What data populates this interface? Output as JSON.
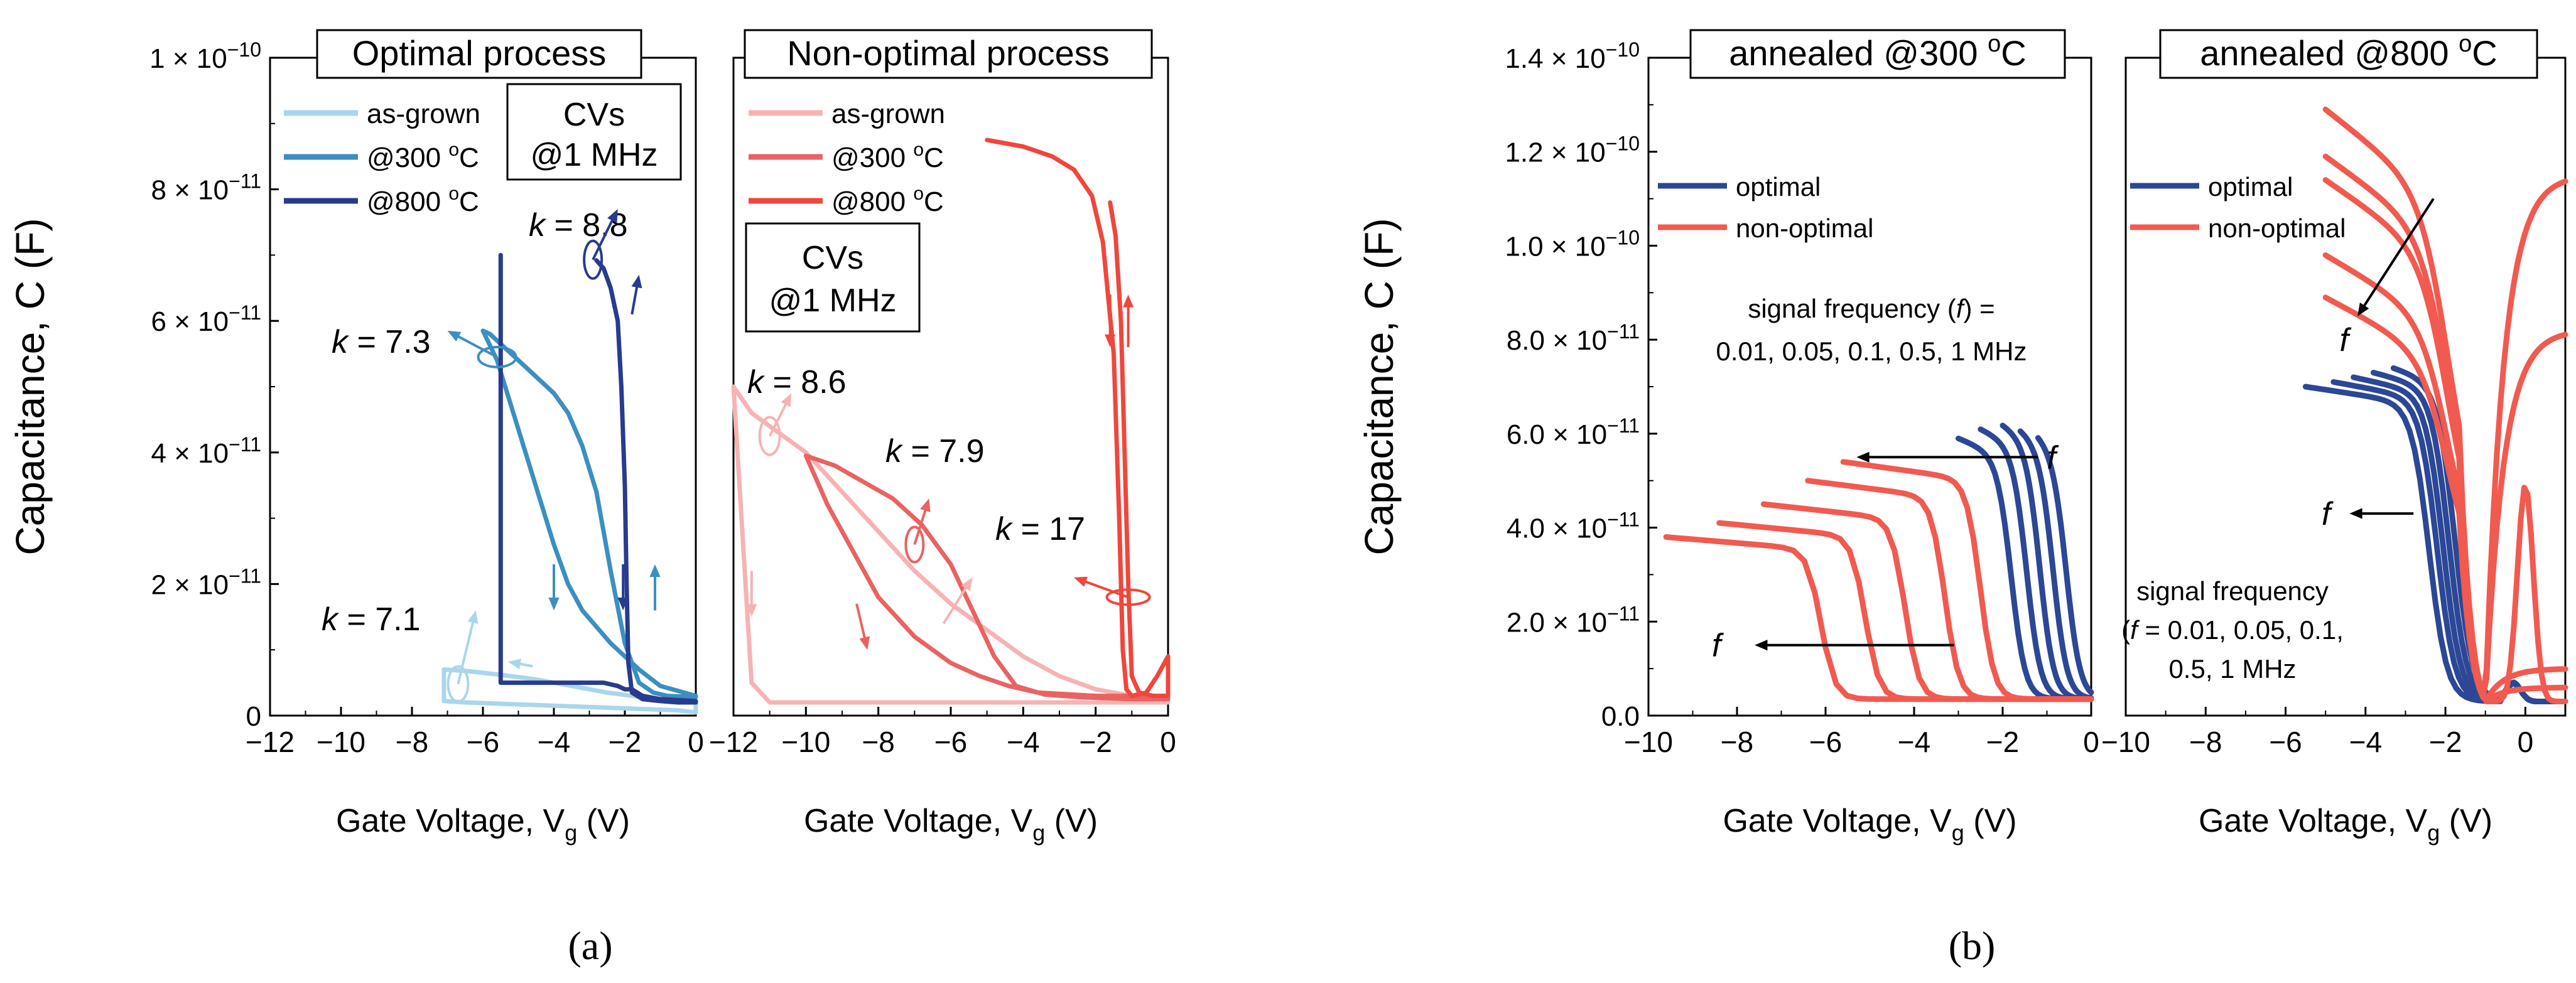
{
  "figure_labels": {
    "a": "(a)",
    "b": "(b)"
  },
  "annotation_texts": {
    "cvs_1": "CVs",
    "cvs_2": "@1 MHz",
    "freq_b1_line1": "signal frequency (f) =",
    "freq_b1_line2": "0.01, 0.05, 0.1, 0.5, 1 MHz",
    "freq_b2_line1": "signal frequency",
    "freq_b2_line2": "(f) = 0.01, 0.05, 0.1,",
    "freq_b2_line3": "0.5, 1 MHz",
    "f_symbol": "f"
  },
  "colors": {
    "as_grown_blue": "#a9d6ea",
    "c300_blue": "#3b8fc1",
    "c800_blue": "#283b8e",
    "as_grown_red": "#f6b3b3",
    "c300_red": "#ea6262",
    "c800_red": "#f0463c",
    "optimal": "#2b4796",
    "non_optimal": "#f15a4f"
  },
  "chart_data": [
    {
      "id": "a1",
      "type": "line",
      "title": "Optimal process",
      "xlabel": "Gate Voltage, Vg (V)",
      "ylabel": "Capacitance, C (F)",
      "xlim": [
        -12,
        0
      ],
      "ylim": [
        0,
        1e-10
      ],
      "xticks": [
        -12,
        -10,
        -8,
        -6,
        -4,
        -2,
        0
      ],
      "yticks": [
        0,
        2e-11,
        4e-11,
        6e-11,
        8e-11,
        1e-10
      ],
      "ytick_labels": [
        "0",
        "2 × 10⁻¹¹",
        "4 × 10⁻¹¹",
        "6 × 10⁻¹¹",
        "8 × 10⁻¹¹",
        "1 × 10⁻¹⁰"
      ],
      "legend": [
        "as-grown",
        "@300 °C",
        "@800 °C"
      ],
      "annotations": [
        "k = 7.1",
        "k = 7.3",
        "k = 8.8"
      ],
      "series": [
        {
          "name": "as-grown",
          "color": "as_grown_blue",
          "width": 7,
          "x": [
            -7.1,
            -6.5,
            -5.5,
            -4.5,
            -3.5,
            -2.5,
            -1.5,
            -0.5,
            0,
            0,
            -0.5,
            -1.5,
            -2.5,
            -3.5,
            -4.5,
            -5.5,
            -6.5,
            -7.1,
            -7.1
          ],
          "y": [
            7e-12,
            6.8e-12,
            6.2e-12,
            5.5e-12,
            4.5e-12,
            3.5e-12,
            2.8e-12,
            2.2e-12,
            2e-12,
            5e-13,
            8e-13,
            1e-12,
            1.2e-12,
            1.4e-12,
            1.6e-12,
            1.8e-12,
            2e-12,
            2.2e-12,
            7e-12
          ]
        },
        {
          "name": "@300 °C",
          "color": "c300_blue",
          "width": 7,
          "x": [
            -6,
            -5.8,
            -5.2,
            -4.6,
            -4.0,
            -3.6,
            -3.2,
            -2.8,
            -2.4,
            -2.0,
            -1.6,
            -1.2,
            -0.8,
            0,
            0,
            -1.0,
            -1.6,
            -2.0,
            -2.4,
            -2.8,
            -3.2,
            -3.6,
            -4.0,
            -4.4,
            -4.8,
            -5.2,
            -5.6,
            -6.0
          ],
          "y": [
            5.85e-11,
            5.8e-11,
            5.5e-11,
            5.2e-11,
            4.9e-11,
            4.6e-11,
            4.1e-11,
            3.4e-11,
            2.2e-11,
            1.1e-11,
            5e-12,
            3.5e-12,
            3e-12,
            2.8e-12,
            3e-12,
            4.5e-12,
            7e-12,
            9e-12,
            1.1e-11,
            1.35e-11,
            1.6e-11,
            2e-11,
            2.6e-11,
            3.3e-11,
            4e-11,
            4.7e-11,
            5.4e-11,
            5.85e-11
          ]
        },
        {
          "name": "@800 °C",
          "color": "c800_blue",
          "width": 7,
          "x": [
            -2.8,
            -2.6,
            -2.4,
            -2.2,
            -2.1,
            -2.0,
            -1.95,
            -1.9,
            -1.8,
            -1.5,
            -1.0,
            -0.5,
            0,
            0,
            -1.0,
            -1.5,
            -1.8,
            -2.0,
            -2.2,
            -2.6,
            -3.2,
            -3.8,
            -4.4,
            -5.0,
            -5.5,
            -5.5
          ],
          "y": [
            6.92e-11,
            6.8e-11,
            6.5e-11,
            6e-11,
            5e-11,
            3.5e-11,
            2e-11,
            8e-12,
            3.5e-12,
            2.5e-12,
            2.2e-12,
            2e-12,
            2e-12,
            2.2e-12,
            2.5e-12,
            3e-12,
            4e-12,
            4e-12,
            4.5e-12,
            5e-12,
            5e-12,
            5e-12,
            5e-12,
            5e-12,
            5e-12,
            7e-11
          ]
        }
      ]
    },
    {
      "id": "a2",
      "type": "line",
      "title": "Non-optimal process",
      "xlabel": "Gate Voltage, Vg (V)",
      "ylabel": "",
      "xlim": [
        -12,
        0
      ],
      "ylim": [
        0,
        1e-10
      ],
      "xticks": [
        -12,
        -10,
        -8,
        -6,
        -4,
        -2,
        0
      ],
      "legend": [
        "as-grown",
        "@300 °C",
        "@800 °C"
      ],
      "annotations": [
        "k = 8.6",
        "k = 7.9",
        "k = 17"
      ],
      "series": [
        {
          "name": "as-grown",
          "color": "as_grown_red",
          "width": 7,
          "x": [
            -12,
            -11.5,
            -11.0,
            -10.5,
            -10.0,
            -9.0,
            -8.0,
            -7.0,
            -6.0,
            -5.0,
            -4.0,
            -3.0,
            -2.0,
            -1.0,
            0,
            0,
            -1.0,
            -3.0,
            -5.0,
            -7.0,
            -9.0,
            -11.0,
            -11.5,
            -12
          ],
          "y": [
            5e-11,
            4.6e-11,
            4.4e-11,
            4.2e-11,
            4e-11,
            3.4e-11,
            2.8e-11,
            2.2e-11,
            1.7e-11,
            1.3e-11,
            9e-12,
            6e-12,
            4e-12,
            3e-12,
            2.5e-12,
            2e-12,
            2e-12,
            2e-12,
            2e-12,
            2e-12,
            2e-12,
            2e-12,
            5e-12,
            5e-11
          ]
        },
        {
          "name": "@300 °C",
          "color": "c300_red",
          "width": 7,
          "x": [
            -10.0,
            -9.2,
            -8.4,
            -7.6,
            -6.8,
            -6.0,
            -5.4,
            -4.8,
            -4.2,
            -3.4,
            -2.4,
            -1.0,
            0,
            0,
            -2.0,
            -3.6,
            -4.4,
            -5.2,
            -6.0,
            -7.0,
            -8.0,
            -8.8,
            -9.4,
            -9.8,
            -10.0
          ],
          "y": [
            3.95e-11,
            3.8e-11,
            3.55e-11,
            3.3e-11,
            2.9e-11,
            2.3e-11,
            1.6e-11,
            9e-12,
            4.5e-12,
            3.2e-12,
            2.8e-12,
            2.5e-12,
            2.5e-12,
            3e-12,
            3e-12,
            3.5e-12,
            4.5e-12,
            6e-12,
            8e-12,
            1.2e-11,
            1.8e-11,
            2.6e-11,
            3.2e-11,
            3.7e-11,
            3.95e-11
          ]
        },
        {
          "name": "@800 °C",
          "color": "c800_red",
          "width": 7,
          "x": [
            -5.0,
            -4.0,
            -3.2,
            -2.6,
            -2.1,
            -1.8,
            -1.5,
            -1.35,
            -1.25,
            -1.15,
            -1.0,
            -0.6,
            -0.3,
            0,
            0,
            -0.4,
            -0.8,
            -1.0,
            -1.1,
            -1.2,
            -1.3,
            -1.45,
            -1.6
          ],
          "y": [
            8.75e-11,
            8.65e-11,
            8.5e-11,
            8.3e-11,
            7.9e-11,
            7.2e-11,
            5.5e-11,
            3e-11,
            1e-11,
            4e-12,
            3e-12,
            3.5e-12,
            6e-12,
            9e-12,
            3e-12,
            3e-12,
            3.5e-12,
            6e-12,
            2e-11,
            4e-11,
            6e-11,
            7.3e-11,
            7.8e-11
          ]
        }
      ]
    },
    {
      "id": "b1",
      "type": "line",
      "title": "annealed @300 °C",
      "xlabel": "Gate Voltage, Vg (V)",
      "ylabel": "Capacitance, C (F)",
      "xlim": [
        -10,
        0
      ],
      "ylim": [
        0,
        1.4e-10
      ],
      "xticks": [
        -10,
        -8,
        -6,
        -4,
        -2,
        0
      ],
      "yticks": [
        0,
        2e-11,
        4e-11,
        6e-11,
        8e-11,
        1e-10,
        1.2e-10,
        1.4e-10
      ],
      "ytick_labels": [
        "0.0",
        "2.0 × 10⁻¹¹",
        "4.0 × 10⁻¹¹",
        "6.0 × 10⁻¹¹",
        "8.0 × 10⁻¹¹",
        "1.0 × 10⁻¹⁰",
        "1.2 × 10⁻¹⁰",
        "1.4 × 10⁻¹⁰"
      ],
      "legend": [
        "optimal",
        "non-optimal"
      ],
      "optimal_start_x": [
        -3.0,
        -2.5,
        -2.0,
        -1.6,
        -1.2
      ],
      "optimal_start_y": [
        5.9e-11,
        6.1e-11,
        6.2e-11,
        6.1e-11,
        6e-11
      ],
      "optimal_drop_x": [
        -1.8,
        -1.45,
        -1.15,
        -0.85,
        -0.55
      ],
      "nonoptimal_start_x": [
        -9.6,
        -8.4,
        -7.4,
        -6.4,
        -5.6
      ],
      "nonoptimal_start_y": [
        3.8e-11,
        4.1e-11,
        4.5e-11,
        5e-11,
        5.4e-11
      ],
      "nonoptimal_drop_x": [
        -6.1,
        -5.1,
        -4.2,
        -3.3,
        -2.5
      ]
    },
    {
      "id": "b2",
      "type": "line",
      "title": "annealed @800 °C",
      "xlabel": "Gate Voltage, Vg (V)",
      "ylabel": "",
      "xlim": [
        -10,
        1
      ],
      "ylim": [
        0,
        1.4e-10
      ],
      "xticks": [
        -10,
        -8,
        -6,
        -4,
        -2,
        0
      ],
      "legend": [
        "optimal",
        "non-optimal"
      ],
      "optimal_start_x": [
        -5.5,
        -4.8,
        -4.3,
        -3.8,
        -3.3
      ],
      "optimal_start_y": [
        7e-11,
        7.1e-11,
        7.2e-11,
        7.3e-11,
        7.4e-11
      ],
      "optimal_drop_x": [
        -2.4,
        -2.2,
        -2.05,
        -1.9,
        -1.75
      ],
      "nonoptimal_top_y": [
        1.29e-10,
        1.19e-10,
        1.14e-10,
        9.8e-11,
        8.9e-11
      ],
      "nonoptimal_right_y": [
        1.15e-10,
        8.2e-11,
        4.9e-11,
        1e-11,
        6e-12
      ]
    }
  ]
}
